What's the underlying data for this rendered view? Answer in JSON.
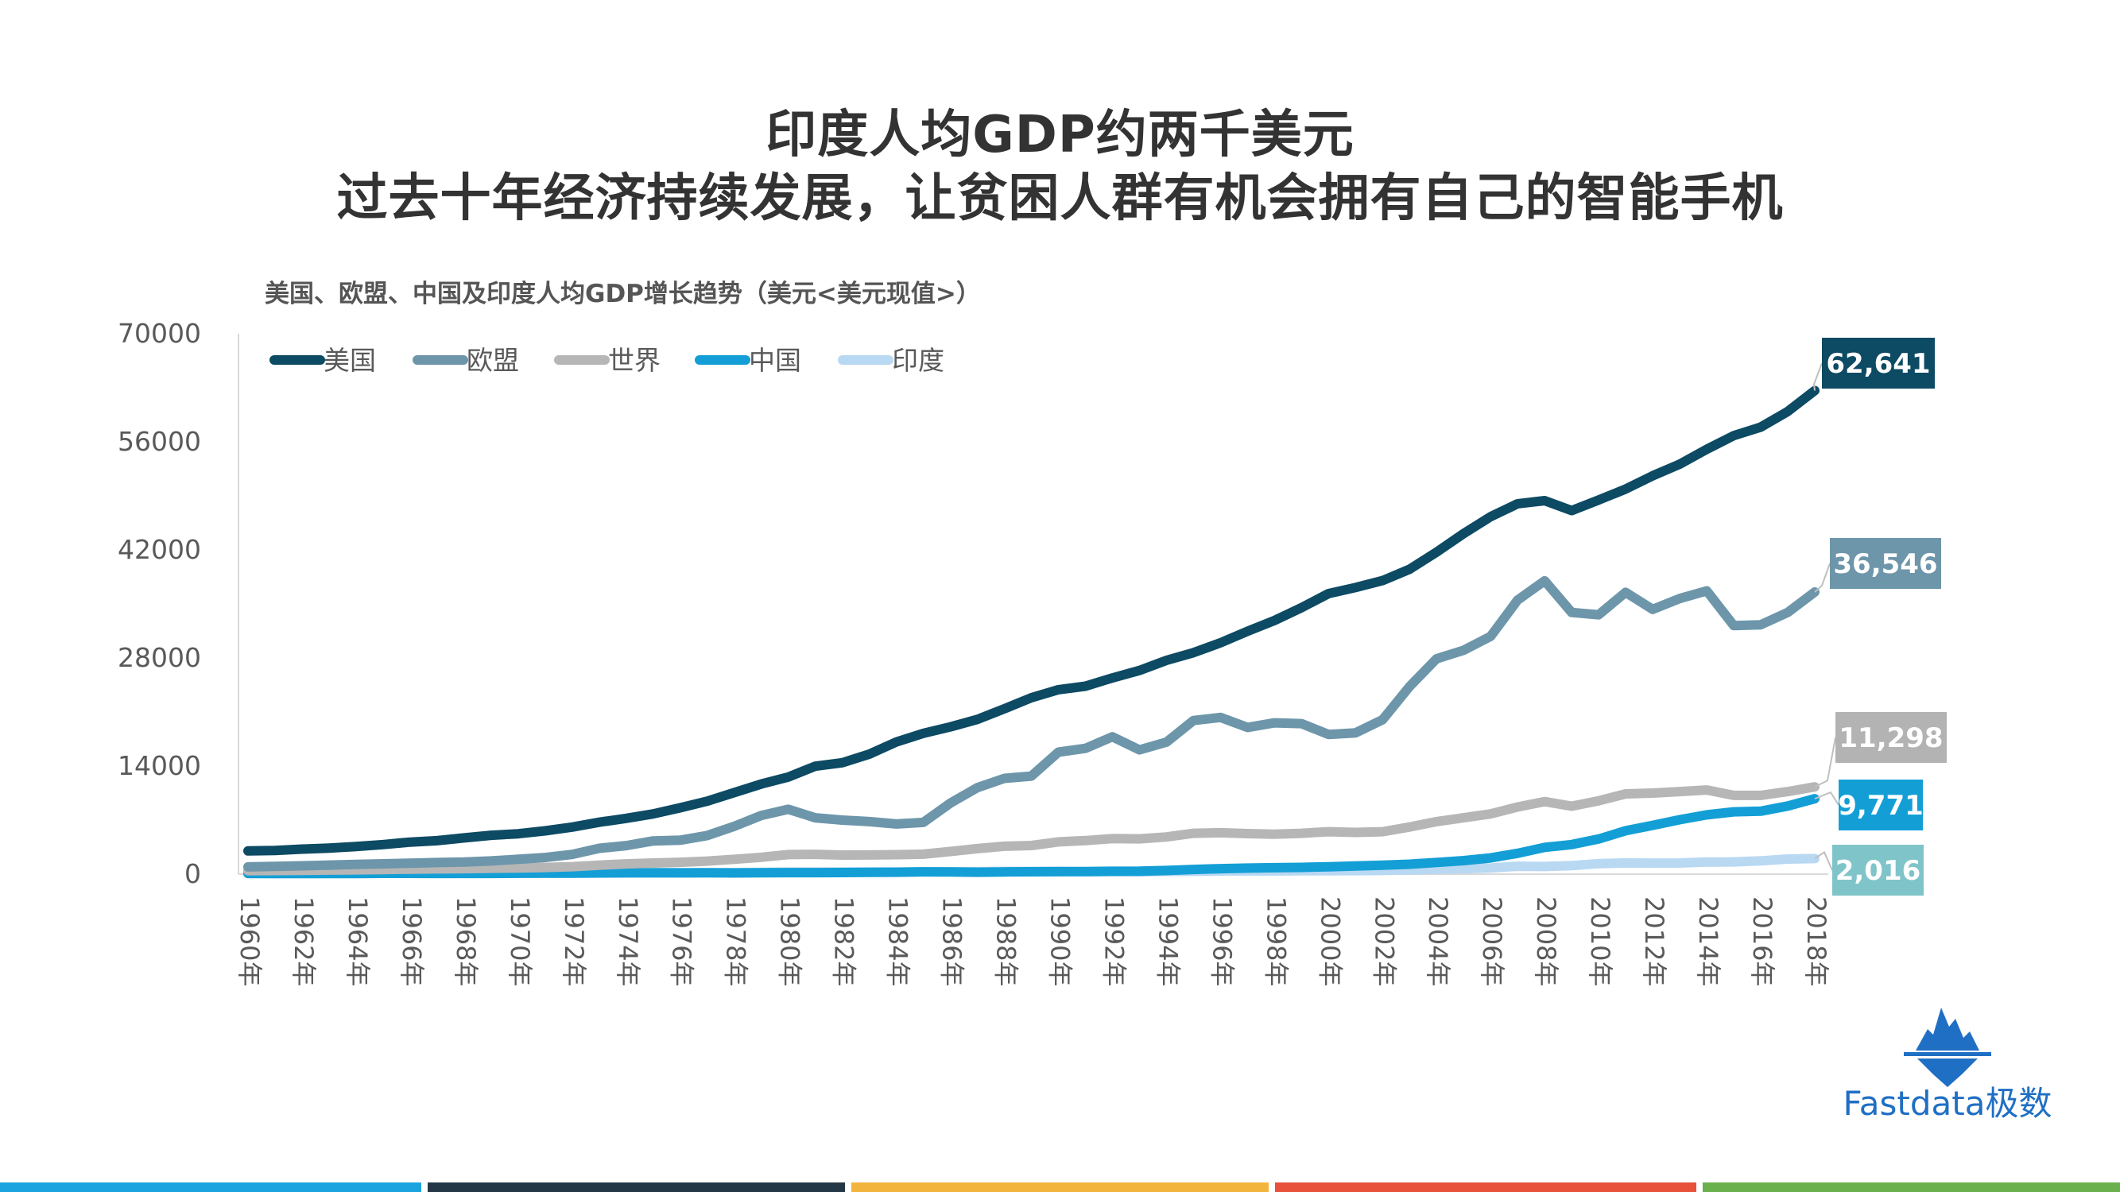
{
  "header": {
    "title_line1": "印度人均GDP约两千美元",
    "title_line2": "过去十年经济持续发展，让贫困人群有机会拥有自己的智能手机"
  },
  "brand": {
    "logo_text": "Fastdata极数",
    "logo_color": "#1f6fc4"
  },
  "footer_bar_colors": [
    "#1aa3de",
    "#243746",
    "#f2b43c",
    "#e8513a",
    "#6ab04c"
  ],
  "chart_data": {
    "type": "line",
    "title": "美国、欧盟、中国及印度人均GDP增长趋势（美元<美元现值>）",
    "xlabel": "",
    "ylabel": "",
    "ylim": [
      0,
      70000
    ],
    "yticks": [
      "70000",
      "56000",
      "42000",
      "28000",
      "14000",
      "0"
    ],
    "ytick_values": [
      70000,
      56000,
      42000,
      28000,
      14000,
      0
    ],
    "xticks": [
      "1960年",
      "1962年",
      "1964年",
      "1966年",
      "1968年",
      "1970年",
      "1972年",
      "1974年",
      "1976年",
      "1978年",
      "1980年",
      "1982年",
      "1984年",
      "1986年",
      "1988年",
      "1990年",
      "1992年",
      "1994年",
      "1996年",
      "1998年",
      "2000年",
      "2002年",
      "2004年",
      "2006年",
      "2008年",
      "2010年",
      "2012年",
      "2014年",
      "2016年",
      "2018年"
    ],
    "x_start": 1960,
    "x_end": 2018,
    "legend_position": "top-left",
    "grid": false,
    "series": [
      {
        "name": "美国",
        "color": "#0d4a63",
        "end_label": "62,641",
        "values": [
          3007,
          3067,
          3244,
          3375,
          3574,
          3828,
          4146,
          4336,
          4696,
          5032,
          5234,
          5609,
          6094,
          6726,
          7226,
          7801,
          8592,
          9453,
          10565,
          11674,
          12575,
          13976,
          14434,
          15544,
          17121,
          18237,
          19071,
          20039,
          21417,
          22857,
          23889,
          24342,
          25419,
          26387,
          27695,
          28691,
          29968,
          31459,
          32854,
          34513,
          36335,
          37133,
          38023,
          39496,
          41712,
          44115,
          46299,
          47976,
          48383,
          47100,
          48467,
          49887,
          51603,
          53107,
          55033,
          56803,
          57904,
          59928,
          62641
        ]
      },
      {
        "name": "欧盟",
        "color": "#6d96aa",
        "end_label": "36,546",
        "values": [
          932,
          1000,
          1081,
          1170,
          1257,
          1340,
          1425,
          1506,
          1563,
          1710,
          1930,
          2148,
          2553,
          3350,
          3700,
          4300,
          4400,
          5000,
          6200,
          7600,
          8400,
          7300,
          7000,
          6800,
          6500,
          6700,
          9200,
          11200,
          12400,
          12700,
          15800,
          16300,
          17800,
          16100,
          17100,
          19900,
          20300,
          19000,
          19600,
          19500,
          18100,
          18300,
          20000,
          24300,
          27900,
          29000,
          30800,
          35500,
          38000,
          33900,
          33600,
          36500,
          34300,
          35700,
          36700,
          32200,
          32300,
          33900,
          36546
        ]
      },
      {
        "name": "世界",
        "color": "#b6b6b6",
        "end_label": "11,298",
        "values": [
          452,
          466,
          493,
          522,
          560,
          599,
          646,
          675,
          706,
          764,
          805,
          865,
          963,
          1162,
          1332,
          1437,
          1534,
          1687,
          1929,
          2186,
          2529,
          2560,
          2470,
          2477,
          2520,
          2587,
          2938,
          3303,
          3611,
          3704,
          4178,
          4339,
          4597,
          4568,
          4821,
          5293,
          5365,
          5250,
          5164,
          5292,
          5493,
          5400,
          5500,
          6100,
          6800,
          7300,
          7800,
          8700,
          9400,
          8800,
          9500,
          10400,
          10500,
          10700,
          10900,
          10200,
          10200,
          10700,
          11298
        ]
      },
      {
        "name": "中国",
        "color": "#139fd6",
        "end_label": "9,771",
        "values": [
          90,
          76,
          70,
          74,
          85,
          98,
          104,
          97,
          91,
          90,
          113,
          119,
          132,
          157,
          160,
          178,
          165,
          185,
          156,
          184,
          195,
          197,
          203,
          225,
          251,
          294,
          282,
          252,
          284,
          311,
          318,
          333,
          366,
          377,
          473,
          610,
          709,
          782,
          829,
          873,
          959,
          1053,
          1149,
          1289,
          1509,
          1753,
          2099,
          2694,
          3468,
          3832,
          4550,
          5618,
          6317,
          7051,
          7679,
          8067,
          8148,
          8817,
          9771
        ]
      },
      {
        "name": "印度",
        "color": "#b9d8f2",
        "end_label": "2,016",
        "values": [
          82,
          85,
          89,
          101,
          116,
          119,
          90,
          96,
          99,
          107,
          112,
          118,
          122,
          143,
          163,
          158,
          161,
          186,
          206,
          224,
          267,
          271,
          274,
          291,
          277,
          296,
          310,
          340,
          354,
          346,
          368,
          303,
          317,
          301,
          346,
          374,
          400,
          415,
          413,
          442,
          443,
          452,
          471,
          546,
          624,
          710,
          802,
          1023,
          991,
          1102,
          1358,
          1450,
          1434,
          1438,
          1560,
          1590,
          1714,
          1958,
          2016
        ]
      }
    ]
  }
}
